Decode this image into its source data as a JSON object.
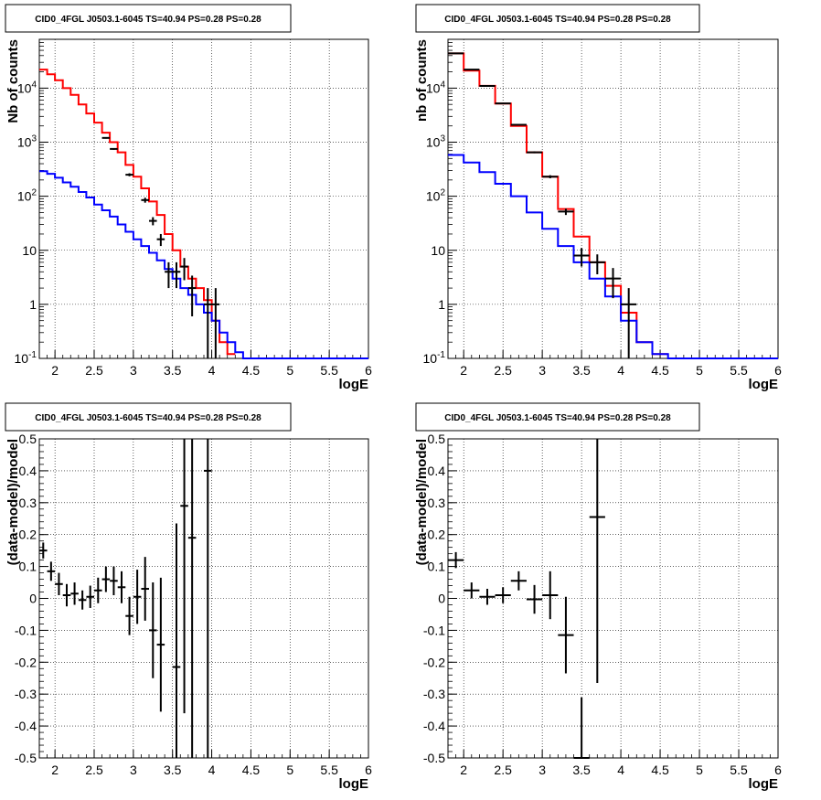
{
  "chart_data": [
    {
      "id": "p1",
      "type": "line",
      "title": "CID0_4FGL J0503.1-6045 TS=40.94 PS=0.28 PS=0.28",
      "xlabel": "logE",
      "ylabel": "Nb of counts",
      "xlim": [
        1.8,
        6.0
      ],
      "ylim": [
        0.1,
        80000
      ],
      "yscale": "log",
      "grid": true,
      "xticks": [
        "2",
        "2.5",
        "3",
        "3.5",
        "4",
        "4.5",
        "5",
        "5.5",
        "6"
      ],
      "yticks": [
        [
          "10^-1",
          0.1
        ],
        [
          "1",
          1
        ],
        [
          "10",
          10
        ],
        [
          "10^2",
          100
        ],
        [
          "10^3",
          1000
        ],
        [
          "10^4",
          10000
        ]
      ],
      "series": [
        {
          "role": "model-total",
          "color": "#ff0000",
          "edges": [
            1.8,
            1.9,
            2.0,
            2.1,
            2.2,
            2.3,
            2.4,
            2.5,
            2.6,
            2.7,
            2.8,
            2.9,
            3.0,
            3.1,
            3.2,
            3.3,
            3.4,
            3.5,
            3.6,
            3.7,
            3.8,
            3.9,
            4.0,
            4.1,
            4.2,
            4.3
          ],
          "values": [
            22000,
            18000,
            14000,
            10000,
            7500,
            5000,
            3400,
            2300,
            1500,
            1000,
            650,
            380,
            230,
            140,
            80,
            45,
            20,
            10,
            5,
            3,
            2,
            1.2,
            0.5,
            0.2,
            0.12
          ]
        },
        {
          "role": "model-source",
          "color": "#0000ff",
          "edges": [
            1.8,
            1.9,
            2.0,
            2.1,
            2.2,
            2.3,
            2.4,
            2.5,
            2.6,
            2.7,
            2.8,
            2.9,
            3.0,
            3.1,
            3.2,
            3.3,
            3.4,
            3.5,
            3.6,
            3.7,
            3.8,
            3.9,
            4.0,
            4.1,
            4.2,
            4.3,
            4.4,
            4.5,
            4.6,
            4.7,
            4.8,
            4.9,
            5.0,
            5.1,
            5.2,
            5.3,
            5.4,
            5.5,
            5.6,
            5.7,
            5.8,
            5.9,
            6.0
          ],
          "values": [
            290,
            260,
            220,
            180,
            150,
            120,
            95,
            70,
            55,
            42,
            30,
            22,
            16,
            12,
            9,
            6.5,
            4.5,
            3,
            2,
            1.5,
            1.0,
            0.7,
            0.5,
            0.3,
            0.2,
            0.13,
            0.1,
            0.1,
            0.1,
            0.1,
            0.1,
            0.1,
            0.1,
            0.1,
            0.1,
            0.1,
            0.1,
            0.1,
            0.1,
            0.1,
            0.1,
            0.1
          ]
        },
        {
          "role": "data",
          "color": "#000000",
          "points": [
            [
              2.65,
              1200,
              0.05,
              35
            ],
            [
              2.75,
              750,
              0.05,
              27
            ],
            [
              2.95,
              250,
              0.05,
              16
            ],
            [
              3.15,
              85,
              0.05,
              9
            ],
            [
              3.25,
              35,
              0.05,
              6
            ],
            [
              3.35,
              16,
              0.05,
              4
            ],
            [
              3.45,
              4,
              0.05,
              2
            ],
            [
              3.55,
              4,
              0.05,
              2
            ],
            [
              3.65,
              5,
              0.05,
              2.2
            ],
            [
              3.75,
              2,
              0.05,
              1.4
            ],
            [
              3.95,
              1,
              0.05,
              1
            ],
            [
              4.05,
              1,
              0.05,
              1
            ]
          ]
        }
      ]
    },
    {
      "id": "p2",
      "type": "line",
      "title": "CID0_4FGL J0503.1-6045 TS=40.94 PS=0.28 PS=0.28",
      "xlabel": "logE",
      "ylabel": "nb of counts",
      "xlim": [
        1.8,
        6.0
      ],
      "ylim": [
        0.1,
        80000
      ],
      "yscale": "log",
      "grid": true,
      "xticks": [
        "2",
        "2.5",
        "3",
        "3.5",
        "4",
        "4.5",
        "5",
        "5.5",
        "6"
      ],
      "yticks": [
        [
          "10^-1",
          0.1
        ],
        [
          "1",
          1
        ],
        [
          "10",
          10
        ],
        [
          "10^2",
          100
        ],
        [
          "10^3",
          1000
        ],
        [
          "10^4",
          10000
        ]
      ],
      "series": [
        {
          "role": "model-total",
          "color": "#ff0000",
          "edges": [
            1.8,
            2.0,
            2.2,
            2.4,
            2.6,
            2.8,
            3.0,
            3.2,
            3.4,
            3.6,
            3.8,
            4.0,
            4.2,
            4.4,
            4.6
          ],
          "values": [
            44000,
            21000,
            11000,
            5200,
            2000,
            650,
            230,
            58,
            18,
            6,
            2.2,
            0.7,
            0.2,
            0.12
          ]
        },
        {
          "role": "model-source",
          "color": "#0000ff",
          "edges": [
            1.8,
            2.0,
            2.2,
            2.4,
            2.6,
            2.8,
            3.0,
            3.2,
            3.4,
            3.6,
            3.8,
            4.0,
            4.2,
            4.4,
            4.6,
            4.8,
            5.0,
            5.2,
            5.4,
            5.6,
            5.8,
            6.0
          ],
          "values": [
            580,
            420,
            280,
            170,
            100,
            50,
            25,
            12,
            6,
            3,
            1.4,
            0.5,
            0.2,
            0.12,
            0.1,
            0.1,
            0.1,
            0.1,
            0.1,
            0.1,
            0.1
          ]
        },
        {
          "role": "data",
          "color": "#000000",
          "points": [
            [
              1.9,
              44000,
              0.1,
              210
            ],
            [
              2.1,
              22000,
              0.1,
              150
            ],
            [
              2.3,
              11000,
              0.1,
              100
            ],
            [
              2.5,
              5200,
              0.1,
              72
            ],
            [
              2.7,
              2100,
              0.1,
              46
            ],
            [
              2.9,
              650,
              0.1,
              25
            ],
            [
              3.1,
              230,
              0.1,
              15
            ],
            [
              3.3,
              52,
              0.1,
              7
            ],
            [
              3.5,
              8,
              0.1,
              3
            ],
            [
              3.7,
              6,
              0.1,
              2.4
            ],
            [
              3.9,
              3,
              0.1,
              1.7
            ],
            [
              4.1,
              1,
              0.1,
              1
            ]
          ]
        }
      ]
    },
    {
      "id": "p3",
      "type": "scatter",
      "title": "CID0_4FGL J0503.1-6045 TS=40.94 PS=0.28 PS=0.28",
      "xlabel": "logE",
      "ylabel": "(data-model)/model",
      "xlim": [
        1.8,
        6.0
      ],
      "ylim": [
        -0.5,
        0.5
      ],
      "grid": true,
      "xticks": [
        "2",
        "2.5",
        "3",
        "3.5",
        "4",
        "4.5",
        "5",
        "5.5",
        "6"
      ],
      "yticks": [
        [
          "-0.5",
          -0.5
        ],
        [
          "-0.4",
          -0.4
        ],
        [
          "-0.3",
          -0.3
        ],
        [
          "-0.2",
          -0.2
        ],
        [
          "-0.1",
          -0.1
        ],
        [
          "0",
          0
        ],
        [
          "0.1",
          0.1
        ],
        [
          "0.2",
          0.2
        ],
        [
          "0.3",
          0.3
        ],
        [
          "0.4",
          0.4
        ],
        [
          "0.5",
          0.5
        ]
      ],
      "points": [
        [
          1.85,
          0.15,
          0.05,
          0.025
        ],
        [
          1.95,
          0.085,
          0.05,
          0.03
        ],
        [
          2.05,
          0.045,
          0.05,
          0.035
        ],
        [
          2.15,
          0.01,
          0.05,
          0.035
        ],
        [
          2.25,
          0.015,
          0.05,
          0.035
        ],
        [
          2.35,
          -0.005,
          0.05,
          0.03
        ],
        [
          2.45,
          0.005,
          0.05,
          0.035
        ],
        [
          2.55,
          0.025,
          0.05,
          0.04
        ],
        [
          2.65,
          0.06,
          0.05,
          0.04
        ],
        [
          2.75,
          0.055,
          0.05,
          0.045
        ],
        [
          2.85,
          0.035,
          0.05,
          0.05
        ],
        [
          2.95,
          -0.055,
          0.05,
          0.06
        ],
        [
          3.05,
          0.005,
          0.05,
          0.085
        ],
        [
          3.15,
          0.03,
          0.05,
          0.1
        ],
        [
          3.25,
          -0.1,
          0.05,
          0.15
        ],
        [
          3.35,
          -0.145,
          0.05,
          0.21
        ],
        [
          3.55,
          -0.215,
          0.05,
          0.45
        ],
        [
          3.65,
          0.29,
          0.05,
          0.65
        ],
        [
          3.75,
          0.19,
          0.05,
          0.9
        ],
        [
          3.95,
          0.4,
          0.05,
          1.0
        ]
      ]
    },
    {
      "id": "p4",
      "type": "scatter",
      "title": "CID0_4FGL J0503.1-6045 TS=40.94 PS=0.28 PS=0.28",
      "xlabel": "logE",
      "ylabel": "(data-model)/model",
      "xlim": [
        1.8,
        6.0
      ],
      "ylim": [
        -0.5,
        0.5
      ],
      "grid": true,
      "xticks": [
        "2",
        "2.5",
        "3",
        "3.5",
        "4",
        "4.5",
        "5",
        "5.5",
        "6"
      ],
      "yticks": [
        [
          "-0.5",
          -0.5
        ],
        [
          "-0.4",
          -0.4
        ],
        [
          "-0.3",
          -0.3
        ],
        [
          "-0.2",
          -0.2
        ],
        [
          "-0.1",
          -0.1
        ],
        [
          "0",
          0
        ],
        [
          "0.1",
          0.1
        ],
        [
          "0.2",
          0.2
        ],
        [
          "0.3",
          0.3
        ],
        [
          "0.4",
          0.4
        ],
        [
          "0.5",
          0.5
        ]
      ],
      "points": [
        [
          1.9,
          0.12,
          0.1,
          0.025
        ],
        [
          2.1,
          0.025,
          0.1,
          0.025
        ],
        [
          2.3,
          0.005,
          0.1,
          0.025
        ],
        [
          2.5,
          0.01,
          0.1,
          0.025
        ],
        [
          2.7,
          0.055,
          0.1,
          0.03
        ],
        [
          2.9,
          -0.003,
          0.1,
          0.045
        ],
        [
          3.1,
          0.01,
          0.1,
          0.075
        ],
        [
          3.3,
          -0.115,
          0.1,
          0.12
        ],
        [
          3.5,
          -0.5,
          0.1,
          0.19
        ],
        [
          3.7,
          0.255,
          0.1,
          0.52
        ]
      ]
    }
  ]
}
